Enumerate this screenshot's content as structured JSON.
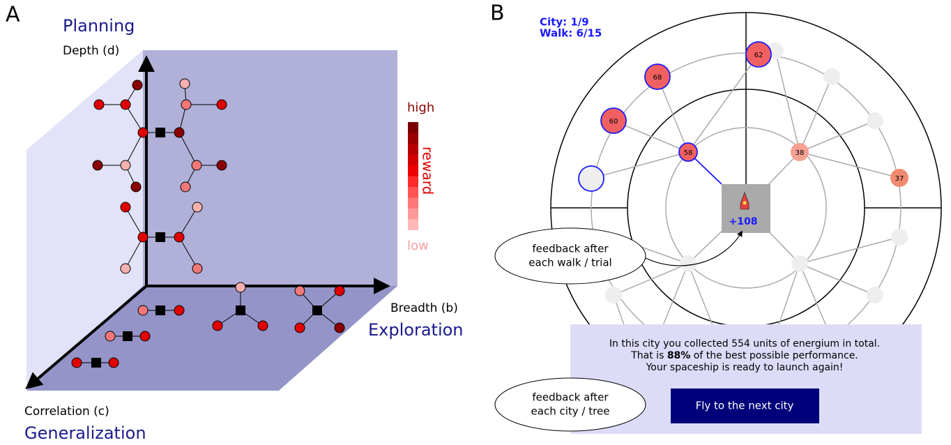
{
  "panel_a": {
    "label": "A",
    "planning": "Planning",
    "depth_axis": "Depth (d)",
    "breadth_axis": "Breadth (b)",
    "exploration": "Exploration",
    "correlation_axis": "Correlation (c)",
    "generalization": "Generalization",
    "legend_high": "high",
    "legend_low": "low",
    "legend_title": "reward"
  },
  "panel_b": {
    "label": "B",
    "city": "City: 1/9",
    "walk": "Walk: 6/15",
    "nodes": [
      "62",
      "68",
      "60",
      "58",
      "38",
      "37"
    ],
    "center_feedback": "+108",
    "callout_walk": [
      "feedback after",
      "each walk / trial"
    ],
    "callout_city": [
      "feedback after",
      "each city / tree"
    ],
    "summary": {
      "line1": "In this city you collected 554 units of energium in total.",
      "line2_pre": "That is ",
      "line2_bold": "88%",
      "line2_post": " of the best possible performance.",
      "line3": "Your spaceship is ready to launch again!"
    },
    "button": "Fly to the next city"
  }
}
